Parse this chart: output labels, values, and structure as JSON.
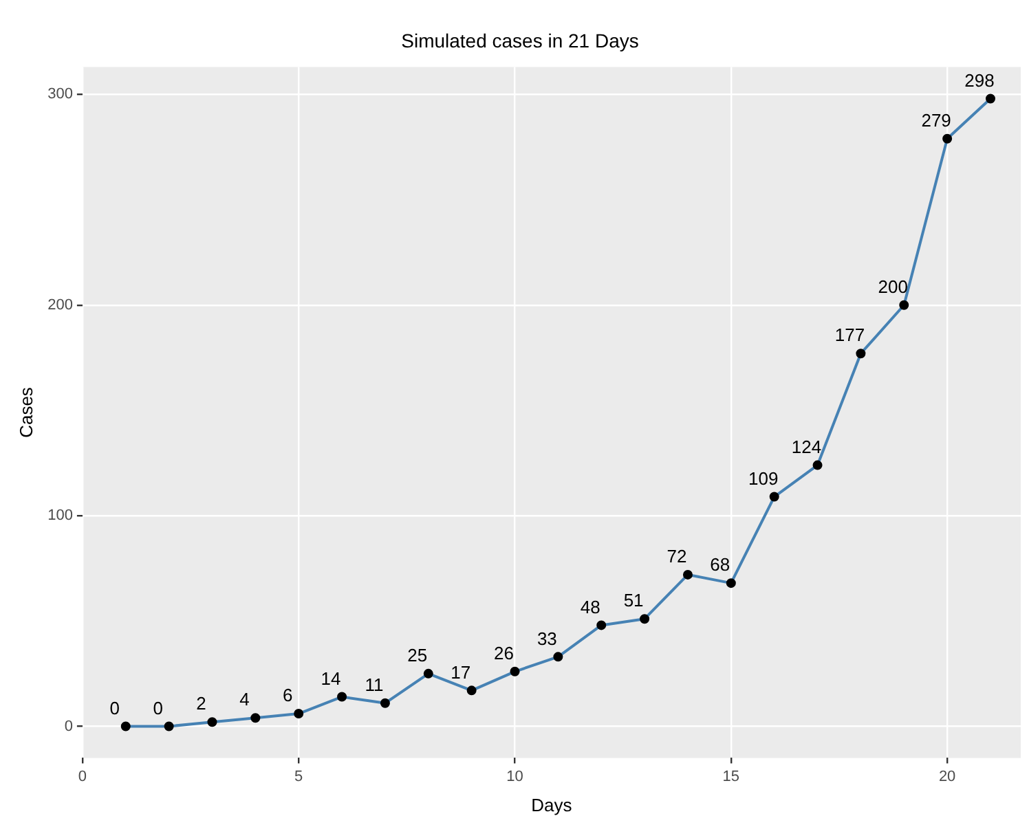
{
  "chart_data": {
    "type": "line",
    "title": "Simulated cases in 21 Days",
    "xlabel": "Days",
    "ylabel": "Cases",
    "x": [
      1,
      2,
      3,
      4,
      5,
      6,
      7,
      8,
      9,
      10,
      11,
      12,
      13,
      14,
      15,
      16,
      17,
      18,
      19,
      20,
      21
    ],
    "series": [
      {
        "color": "#4682b4",
        "values": [
          0,
          0,
          2,
          4,
          6,
          14,
          11,
          25,
          17,
          26,
          33,
          48,
          51,
          72,
          68,
          109,
          124,
          177,
          200,
          279,
          298
        ]
      }
    ],
    "xlim": [
      0,
      21.7
    ],
    "xticks": [
      0,
      5,
      10,
      15,
      20
    ],
    "ylim": [
      -15,
      313
    ],
    "yticks": [
      0,
      100,
      200,
      300
    ],
    "grid": true,
    "legend": false,
    "marker": "circle",
    "line_style": "solid",
    "data_labels": true
  }
}
